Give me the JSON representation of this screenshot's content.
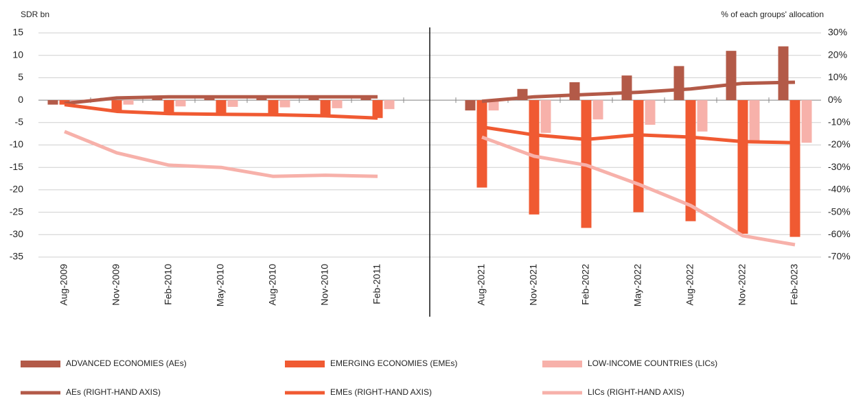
{
  "chart_data": {
    "type": "bar",
    "ylabel": "SDR bn",
    "y2label": "% of each groups' allocation",
    "categories": [
      "Aug-2009",
      "Nov-2009",
      "Feb-2010",
      "May-2010",
      "Aug-2010",
      "Nov-2010",
      "Feb-2011",
      null,
      "Aug-2021",
      "Nov-2021",
      "Feb-2022",
      "May-2022",
      "Aug-2022",
      "Nov-2022",
      "Feb-2023"
    ],
    "ylim": [
      -35,
      15
    ],
    "yticks": [
      15,
      10,
      5,
      0,
      -5,
      -10,
      -15,
      -20,
      -25,
      -30,
      -35
    ],
    "y2lim": [
      -70,
      30
    ],
    "y2ticks": [
      {
        "value": 30,
        "label": "30%"
      },
      {
        "value": 20,
        "label": "20%"
      },
      {
        "value": 10,
        "label": "10%"
      },
      {
        "value": 0,
        "label": "0%"
      },
      {
        "value": -10,
        "label": "-10%"
      },
      {
        "value": -20,
        "label": "-20%"
      },
      {
        "value": -30,
        "label": "-30%"
      },
      {
        "value": -40,
        "label": "-40%"
      },
      {
        "value": -50,
        "label": "-50%"
      },
      {
        "value": -60,
        "label": "-60%"
      },
      {
        "value": -70,
        "label": "-70%"
      }
    ],
    "grid": true,
    "series": [
      {
        "name": "ADVANCED ECONOMIES (AEs)",
        "kind": "bar",
        "color": "#b35a48",
        "values": [
          -1,
          0.5,
          1,
          0.9,
          0.8,
          0.8,
          0.8,
          null,
          -2.3,
          2.5,
          4,
          5.5,
          7.6,
          11,
          12
        ]
      },
      {
        "name": "EMERGING ECONOMIES (EMEs)",
        "kind": "bar",
        "color": "#f05a32",
        "values": [
          -1,
          -2.5,
          -3,
          -3,
          -3,
          -3.5,
          -4,
          null,
          -19.5,
          -25.5,
          -28.5,
          -25,
          -27,
          -29.8,
          -30.5
        ]
      },
      {
        "name": "LOW-INCOME COUNTRIES (LICs)",
        "kind": "bar",
        "color": "#f7b1aa",
        "values": [
          -0.3,
          -1,
          -1.4,
          -1.5,
          -1.6,
          -1.8,
          -2,
          null,
          -2.3,
          -7.3,
          -4.3,
          -5.5,
          -7,
          -9,
          -9.5
        ]
      },
      {
        "name": "AEs (RIGHT-HAND AXIS)",
        "kind": "line",
        "axis": "y2",
        "color": "#b35a48",
        "values": [
          -1.5,
          1,
          1.5,
          1.5,
          1.5,
          1.5,
          1.5,
          null,
          -0.5,
          1.5,
          2.5,
          3.5,
          5,
          7.5,
          8
        ]
      },
      {
        "name": "EMEs (RIGHT-HAND AXIS)",
        "kind": "line",
        "axis": "y2",
        "color": "#f05a32",
        "values": [
          -2,
          -5,
          -6,
          -6.3,
          -6.5,
          -7,
          -8,
          null,
          -12,
          -15.5,
          -17.5,
          -15.5,
          -16.5,
          -18.5,
          -19
        ]
      },
      {
        "name": "LICs (RIGHT-HAND AXIS)",
        "kind": "line",
        "axis": "y2",
        "color": "#f7b1aa",
        "values": [
          -14,
          -23.5,
          -29,
          -30,
          -34,
          -33.5,
          -34,
          null,
          -16.5,
          -25,
          -29,
          -37.5,
          -47,
          -60.5,
          -64.5
        ]
      }
    ]
  }
}
